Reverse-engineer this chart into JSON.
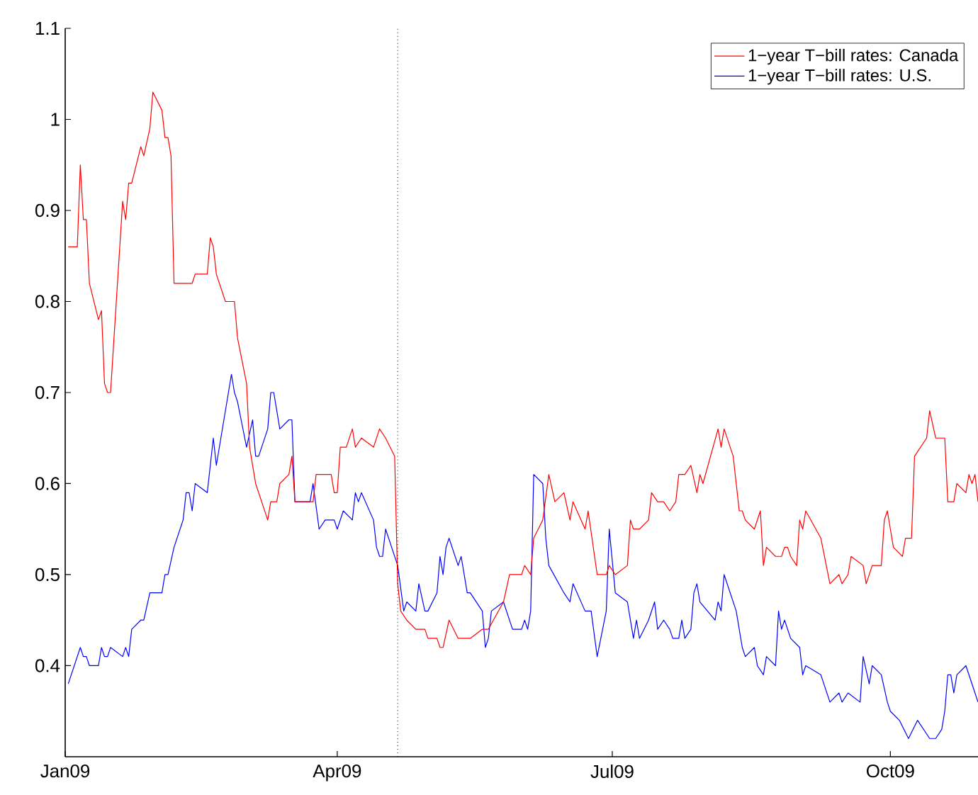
{
  "chart_data": {
    "type": "line",
    "xlim": [
      "2009-01-01",
      "2009-10-30"
    ],
    "xticks": [
      {
        "value": "2009-01-01",
        "label": "Jan09"
      },
      {
        "value": "2009-04-01",
        "label": "Apr09"
      },
      {
        "value": "2009-07-01",
        "label": "Jul09"
      },
      {
        "value": "2009-10-01",
        "label": "Oct09"
      }
    ],
    "ylim": [
      0.3,
      1.1
    ],
    "yticks": [
      0.4,
      0.5,
      0.6,
      0.7,
      0.8,
      0.9,
      1,
      1.1
    ],
    "legend": "top right",
    "ref_lines": [
      {
        "axis": "x",
        "value": "2009-04-21",
        "color": "#000000",
        "line_style": "dotted"
      }
    ],
    "series": [
      {
        "name": "1−year T−bill rates: Canada",
        "color": "#ff0000",
        "x": [
          "2009-01-02",
          "2009-01-05",
          "2009-01-06",
          "2009-01-07",
          "2009-01-08",
          "2009-01-09",
          "2009-01-12",
          "2009-01-13",
          "2009-01-14",
          "2009-01-15",
          "2009-01-16",
          "2009-01-20",
          "2009-01-21",
          "2009-01-22",
          "2009-01-23",
          "2009-01-26",
          "2009-01-27",
          "2009-01-29",
          "2009-01-30",
          "2009-02-02",
          "2009-02-03",
          "2009-02-04",
          "2009-02-05",
          "2009-02-06",
          "2009-02-12",
          "2009-02-13",
          "2009-02-17",
          "2009-02-18",
          "2009-02-19",
          "2009-02-20",
          "2009-02-23",
          "2009-02-26",
          "2009-02-27",
          "2009-03-02",
          "2009-03-03",
          "2009-03-05",
          "2009-03-09",
          "2009-03-10",
          "2009-03-12",
          "2009-03-13",
          "2009-03-16",
          "2009-03-17",
          "2009-03-18",
          "2009-03-24",
          "2009-03-25",
          "2009-03-30",
          "2009-03-31",
          "2009-04-01",
          "2009-04-02",
          "2009-04-04",
          "2009-04-06",
          "2009-04-07",
          "2009-04-09",
          "2009-04-13",
          "2009-04-15",
          "2009-04-17",
          "2009-04-20",
          "2009-04-21",
          "2009-04-22",
          "2009-04-24",
          "2009-04-27",
          "2009-04-30",
          "2009-05-01",
          "2009-05-04",
          "2009-05-05",
          "2009-05-06",
          "2009-05-08",
          "2009-05-11",
          "2009-05-15",
          "2009-05-19",
          "2009-05-21",
          "2009-05-26",
          "2009-05-28",
          "2009-06-01",
          "2009-06-02",
          "2009-06-04",
          "2009-06-05",
          "2009-06-08",
          "2009-06-10",
          "2009-06-12",
          "2009-06-15",
          "2009-06-17",
          "2009-06-18",
          "2009-06-22",
          "2009-06-23",
          "2009-06-26",
          "2009-06-29",
          "2009-06-30",
          "2009-07-02",
          "2009-07-06",
          "2009-07-07",
          "2009-07-08",
          "2009-07-10",
          "2009-07-13",
          "2009-07-14",
          "2009-07-16",
          "2009-07-18",
          "2009-07-20",
          "2009-07-22",
          "2009-07-23",
          "2009-07-25",
          "2009-07-27",
          "2009-07-29",
          "2009-07-30",
          "2009-07-31",
          "2009-08-05",
          "2009-08-06",
          "2009-08-07",
          "2009-08-10",
          "2009-08-12",
          "2009-08-13",
          "2009-08-14",
          "2009-08-17",
          "2009-08-19",
          "2009-08-20",
          "2009-08-21",
          "2009-08-24",
          "2009-08-26",
          "2009-08-27",
          "2009-08-28",
          "2009-08-29",
          "2009-08-31",
          "2009-09-01",
          "2009-09-02",
          "2009-09-03",
          "2009-09-08",
          "2009-09-11",
          "2009-09-14",
          "2009-09-15",
          "2009-09-17",
          "2009-09-18",
          "2009-09-22",
          "2009-09-23",
          "2009-09-25",
          "2009-09-28",
          "2009-09-29",
          "2009-09-30",
          "2009-10-02",
          "2009-10-05",
          "2009-10-06",
          "2009-10-08",
          "2009-10-09",
          "2009-10-13",
          "2009-10-14",
          "2009-10-16",
          "2009-10-19",
          "2009-10-20",
          "2009-10-22",
          "2009-10-23",
          "2009-10-26",
          "2009-10-27",
          "2009-10-28",
          "2009-10-29",
          "2009-10-30"
        ],
        "values": [
          0.86,
          0.86,
          0.95,
          0.89,
          0.89,
          0.82,
          0.78,
          0.79,
          0.71,
          0.7,
          0.7,
          0.91,
          0.89,
          0.93,
          0.93,
          0.97,
          0.96,
          0.99,
          1.03,
          1.01,
          0.98,
          0.98,
          0.96,
          0.82,
          0.82,
          0.83,
          0.83,
          0.87,
          0.86,
          0.83,
          0.8,
          0.8,
          0.76,
          0.71,
          0.64,
          0.6,
          0.56,
          0.58,
          0.58,
          0.6,
          0.61,
          0.63,
          0.58,
          0.58,
          0.61,
          0.61,
          0.59,
          0.59,
          0.64,
          0.64,
          0.66,
          0.64,
          0.65,
          0.64,
          0.66,
          0.65,
          0.63,
          0.49,
          0.46,
          0.45,
          0.44,
          0.44,
          0.43,
          0.43,
          0.42,
          0.42,
          0.45,
          0.43,
          0.43,
          0.44,
          0.44,
          0.47,
          0.5,
          0.5,
          0.51,
          0.5,
          0.54,
          0.56,
          0.61,
          0.58,
          0.59,
          0.56,
          0.58,
          0.55,
          0.57,
          0.5,
          0.5,
          0.51,
          0.5,
          0.51,
          0.56,
          0.55,
          0.55,
          0.56,
          0.59,
          0.58,
          0.58,
          0.57,
          0.58,
          0.61,
          0.61,
          0.62,
          0.59,
          0.61,
          0.6,
          0.66,
          0.64,
          0.66,
          0.63,
          0.57,
          0.57,
          0.56,
          0.55,
          0.57,
          0.51,
          0.53,
          0.52,
          0.52,
          0.53,
          0.53,
          0.52,
          0.51,
          0.56,
          0.55,
          0.57,
          0.54,
          0.49,
          0.5,
          0.49,
          0.5,
          0.52,
          0.51,
          0.49,
          0.51,
          0.51,
          0.56,
          0.57,
          0.53,
          0.52,
          0.54,
          0.54,
          0.63,
          0.65,
          0.68,
          0.65,
          0.65,
          0.58,
          0.58,
          0.6,
          0.59,
          0.61,
          0.6,
          0.61,
          0.58
        ]
      },
      {
        "name": "1−year T−bill rates: U.S.",
        "color": "#0000ff",
        "x": [
          "2009-01-02",
          "2009-01-06",
          "2009-01-07",
          "2009-01-08",
          "2009-01-09",
          "2009-01-12",
          "2009-01-13",
          "2009-01-14",
          "2009-01-15",
          "2009-01-16",
          "2009-01-20",
          "2009-01-21",
          "2009-01-22",
          "2009-01-23",
          "2009-01-26",
          "2009-01-27",
          "2009-01-29",
          "2009-02-02",
          "2009-02-03",
          "2009-02-04",
          "2009-02-06",
          "2009-02-09",
          "2009-02-10",
          "2009-02-11",
          "2009-02-12",
          "2009-02-13",
          "2009-02-17",
          "2009-02-19",
          "2009-02-20",
          "2009-02-24",
          "2009-02-25",
          "2009-02-26",
          "2009-02-27",
          "2009-03-02",
          "2009-03-04",
          "2009-03-05",
          "2009-03-06",
          "2009-03-09",
          "2009-03-10",
          "2009-03-11",
          "2009-03-13",
          "2009-03-16",
          "2009-03-17",
          "2009-03-18",
          "2009-03-23",
          "2009-03-24",
          "2009-03-26",
          "2009-03-28",
          "2009-03-31",
          "2009-04-01",
          "2009-04-03",
          "2009-04-06",
          "2009-04-07",
          "2009-04-08",
          "2009-04-09",
          "2009-04-13",
          "2009-04-14",
          "2009-04-15",
          "2009-04-16",
          "2009-04-17",
          "2009-04-21",
          "2009-04-23",
          "2009-04-24",
          "2009-04-27",
          "2009-04-28",
          "2009-04-30",
          "2009-05-01",
          "2009-05-04",
          "2009-05-05",
          "2009-05-06",
          "2009-05-07",
          "2009-05-08",
          "2009-05-11",
          "2009-05-12",
          "2009-05-14",
          "2009-05-15",
          "2009-05-19",
          "2009-05-20",
          "2009-05-21",
          "2009-05-22",
          "2009-05-26",
          "2009-05-29",
          "2009-06-01",
          "2009-06-02",
          "2009-06-03",
          "2009-06-04",
          "2009-06-05",
          "2009-06-08",
          "2009-06-09",
          "2009-06-10",
          "2009-06-15",
          "2009-06-17",
          "2009-06-18",
          "2009-06-22",
          "2009-06-24",
          "2009-06-26",
          "2009-06-29",
          "2009-06-30",
          "2009-07-02",
          "2009-07-06",
          "2009-07-08",
          "2009-07-09",
          "2009-07-10",
          "2009-07-13",
          "2009-07-15",
          "2009-07-16",
          "2009-07-18",
          "2009-07-20",
          "2009-07-21",
          "2009-07-23",
          "2009-07-24",
          "2009-07-25",
          "2009-07-27",
          "2009-07-28",
          "2009-07-29",
          "2009-07-30",
          "2009-08-04",
          "2009-08-05",
          "2009-08-06",
          "2009-08-07",
          "2009-08-11",
          "2009-08-13",
          "2009-08-14",
          "2009-08-17",
          "2009-08-18",
          "2009-08-20",
          "2009-08-21",
          "2009-08-24",
          "2009-08-25",
          "2009-08-26",
          "2009-08-27",
          "2009-08-29",
          "2009-09-01",
          "2009-09-02",
          "2009-09-03",
          "2009-09-08",
          "2009-09-11",
          "2009-09-14",
          "2009-09-15",
          "2009-09-17",
          "2009-09-21",
          "2009-09-22",
          "2009-09-24",
          "2009-09-25",
          "2009-09-28",
          "2009-09-30",
          "2009-10-01",
          "2009-10-04",
          "2009-10-07",
          "2009-10-10",
          "2009-10-14",
          "2009-10-16",
          "2009-10-18",
          "2009-10-19",
          "2009-10-20",
          "2009-10-21",
          "2009-10-22",
          "2009-10-23",
          "2009-10-26",
          "2009-10-28",
          "2009-10-29",
          "2009-10-30"
        ],
        "values": [
          0.38,
          0.42,
          0.41,
          0.41,
          0.4,
          0.4,
          0.42,
          0.41,
          0.41,
          0.42,
          0.41,
          0.42,
          0.41,
          0.44,
          0.45,
          0.45,
          0.48,
          0.48,
          0.5,
          0.5,
          0.53,
          0.56,
          0.59,
          0.59,
          0.57,
          0.6,
          0.59,
          0.65,
          0.62,
          0.7,
          0.72,
          0.7,
          0.69,
          0.64,
          0.67,
          0.63,
          0.63,
          0.66,
          0.7,
          0.7,
          0.66,
          0.67,
          0.67,
          0.58,
          0.58,
          0.6,
          0.55,
          0.56,
          0.56,
          0.55,
          0.57,
          0.56,
          0.59,
          0.58,
          0.59,
          0.56,
          0.53,
          0.52,
          0.52,
          0.55,
          0.51,
          0.46,
          0.47,
          0.46,
          0.49,
          0.46,
          0.46,
          0.48,
          0.52,
          0.5,
          0.53,
          0.54,
          0.51,
          0.52,
          0.48,
          0.48,
          0.46,
          0.42,
          0.43,
          0.46,
          0.47,
          0.44,
          0.44,
          0.45,
          0.44,
          0.46,
          0.61,
          0.6,
          0.54,
          0.51,
          0.48,
          0.47,
          0.49,
          0.46,
          0.46,
          0.41,
          0.46,
          0.55,
          0.48,
          0.47,
          0.43,
          0.45,
          0.43,
          0.45,
          0.47,
          0.44,
          0.45,
          0.44,
          0.43,
          0.43,
          0.45,
          0.43,
          0.44,
          0.48,
          0.49,
          0.47,
          0.45,
          0.47,
          0.46,
          0.5,
          0.46,
          0.42,
          0.41,
          0.42,
          0.4,
          0.39,
          0.41,
          0.4,
          0.46,
          0.44,
          0.45,
          0.43,
          0.42,
          0.39,
          0.4,
          0.39,
          0.36,
          0.37,
          0.36,
          0.37,
          0.36,
          0.41,
          0.38,
          0.4,
          0.39,
          0.36,
          0.35,
          0.34,
          0.32,
          0.34,
          0.32,
          0.32,
          0.33,
          0.35,
          0.39,
          0.39,
          0.37,
          0.39,
          0.4,
          0.38,
          0.37,
          0.36
        ]
      }
    ]
  }
}
